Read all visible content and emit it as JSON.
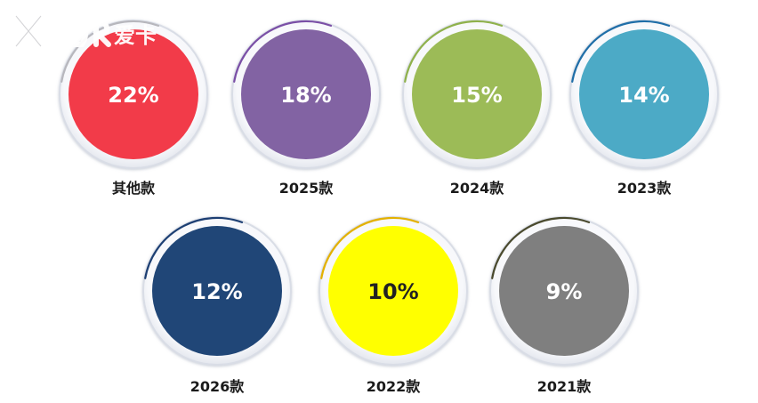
{
  "watermark": {
    "text": "XCAR爱卡"
  },
  "chart_data": {
    "type": "pie",
    "items": [
      {
        "label": "其他款",
        "value": 22,
        "value_label": "22%",
        "color": "#f23b49",
        "ring": "#b7b7bd",
        "text_color": "#ffffff"
      },
      {
        "label": "2025款",
        "value": 18,
        "value_label": "18%",
        "color": "#8263a3",
        "ring": "#7a4fa6",
        "text_color": "#ffffff"
      },
      {
        "label": "2024款",
        "value": 15,
        "value_label": "15%",
        "color": "#9cbb57",
        "ring": "#8fb14b",
        "text_color": "#ffffff"
      },
      {
        "label": "2023款",
        "value": 14,
        "value_label": "14%",
        "color": "#4caac6",
        "ring": "#1f6ea8",
        "text_color": "#ffffff"
      },
      {
        "label": "2026款",
        "value": 12,
        "value_label": "12%",
        "color": "#204677",
        "ring": "#1d3f73",
        "text_color": "#ffffff"
      },
      {
        "label": "2022款",
        "value": 10,
        "value_label": "10%",
        "color": "#ffff00",
        "ring": "#e3b100",
        "text_color": "#222222"
      },
      {
        "label": "2021款",
        "value": 9,
        "value_label": "9%",
        "color": "#7f7f7f",
        "ring": "#4a4a2e",
        "text_color": "#ffffff"
      }
    ]
  }
}
